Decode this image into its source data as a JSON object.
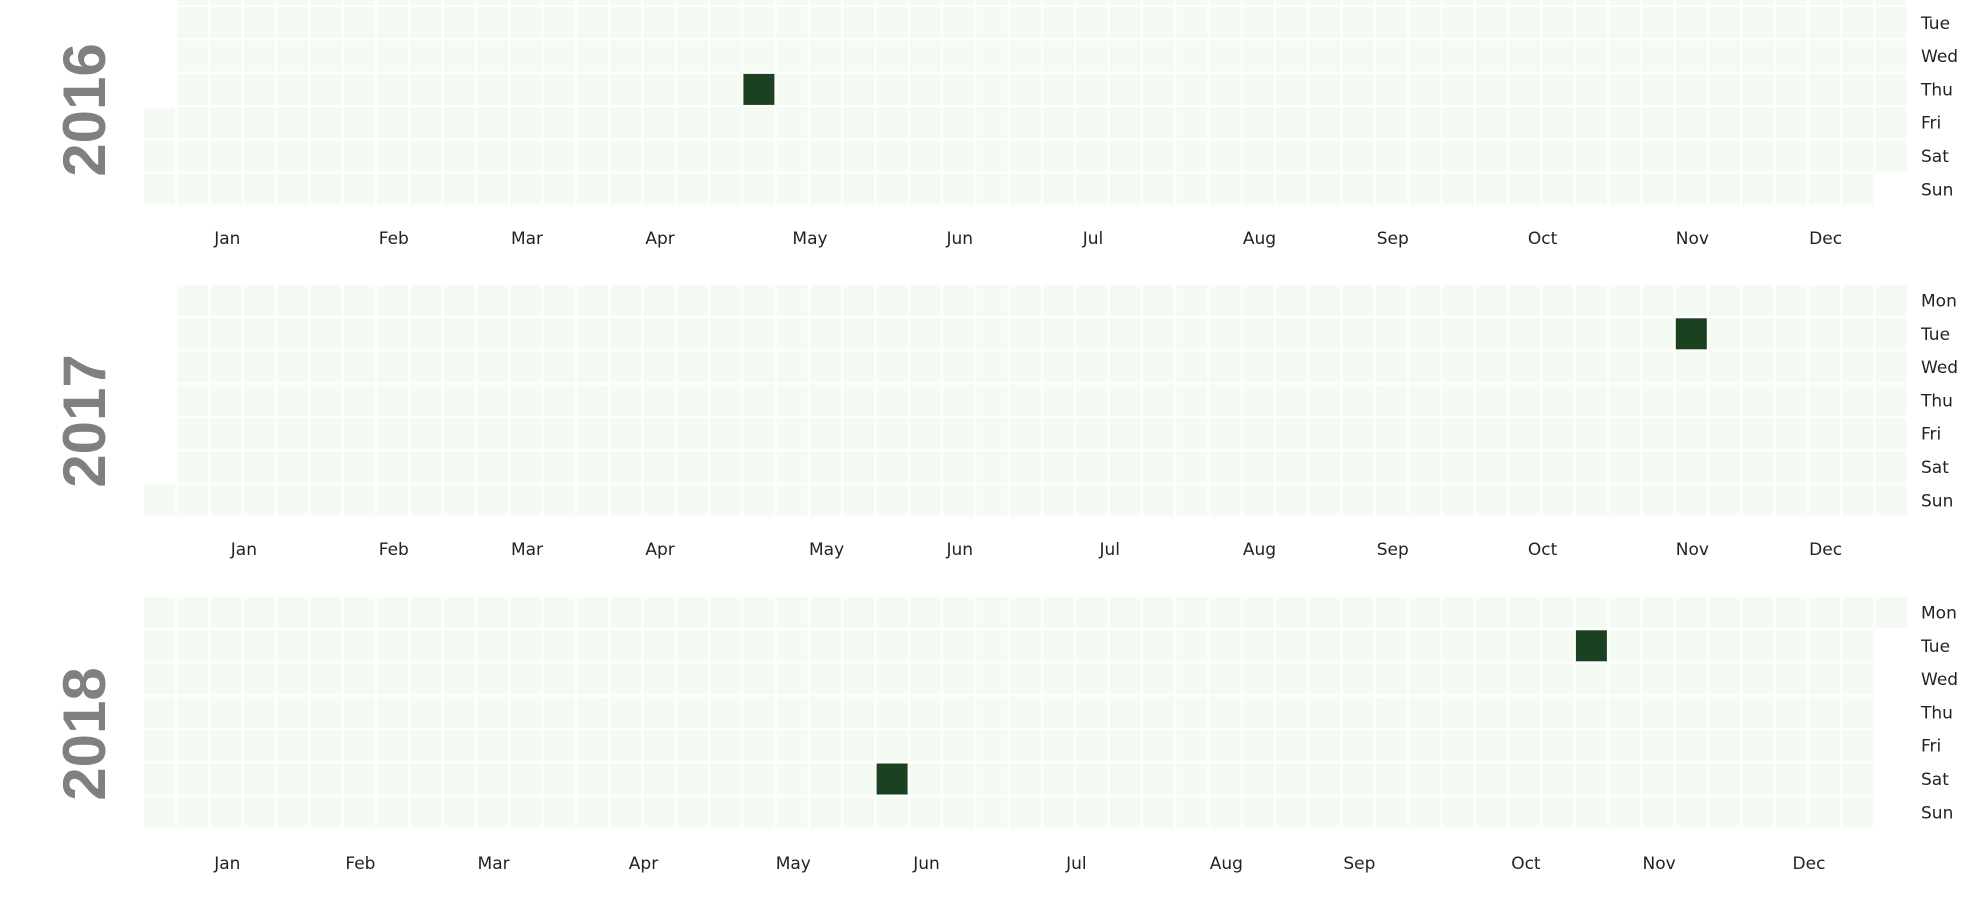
{
  "chart_data": {
    "type": "heatmap",
    "subtype": "calendar",
    "grid": true,
    "colors": {
      "empty_cell": "#f4fbf3",
      "cell_border": "#ffffff",
      "filled_cell": "#1b4220",
      "year_text": "#808080",
      "label_text": "#222222"
    },
    "day_labels": [
      "Mon",
      "Tue",
      "Wed",
      "Thu",
      "Fri",
      "Sat",
      "Sun"
    ],
    "month_labels": [
      "Jan",
      "Feb",
      "Mar",
      "Apr",
      "May",
      "Jun",
      "Jul",
      "Aug",
      "Sep",
      "Oct",
      "Nov",
      "Dec"
    ],
    "years": [
      {
        "year": "2016",
        "start_weekday": 4,
        "days": 366,
        "events": [
          {
            "date": "2016-05-05",
            "value": 1
          }
        ]
      },
      {
        "year": "2017",
        "start_weekday": 6,
        "days": 365,
        "events": [
          {
            "date": "2017-11-14",
            "value": 1
          }
        ]
      },
      {
        "year": "2018",
        "start_weekday": 0,
        "days": 365,
        "events": [
          {
            "date": "2018-06-09",
            "value": 1
          },
          {
            "date": "2018-10-30",
            "value": 1
          }
        ]
      }
    ]
  }
}
